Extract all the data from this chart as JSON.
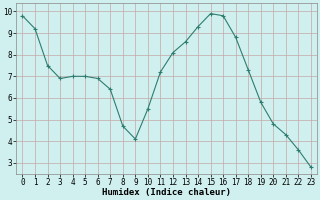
{
  "x": [
    0,
    1,
    2,
    3,
    4,
    5,
    6,
    7,
    8,
    9,
    10,
    11,
    12,
    13,
    14,
    15,
    16,
    17,
    18,
    19,
    20,
    21,
    22,
    23
  ],
  "y": [
    9.8,
    9.2,
    7.5,
    6.9,
    7.0,
    7.0,
    6.9,
    6.4,
    4.7,
    4.1,
    5.5,
    7.2,
    8.1,
    8.6,
    9.3,
    9.9,
    9.8,
    8.8,
    7.3,
    5.8,
    4.8,
    4.3,
    3.6,
    2.8
  ],
  "line_color": "#2e7d6e",
  "marker": "+",
  "bg_color": "#d0f0f0",
  "grid_color": "#c4a8a8",
  "xlabel": "Humidex (Indice chaleur)",
  "xlabel_fontsize": 6.5,
  "ylabel_ticks": [
    3,
    4,
    5,
    6,
    7,
    8,
    9,
    10
  ],
  "xtick_labels": [
    "0",
    "1",
    "2",
    "3",
    "4",
    "5",
    "6",
    "7",
    "8",
    "9",
    "10",
    "11",
    "12",
    "13",
    "14",
    "15",
    "16",
    "17",
    "18",
    "19",
    "20",
    "21",
    "22",
    "23"
  ],
  "ylim": [
    2.5,
    10.4
  ],
  "xlim": [
    -0.5,
    23.5
  ],
  "tick_fontsize": 5.5,
  "markersize": 3,
  "linewidth": 0.8
}
